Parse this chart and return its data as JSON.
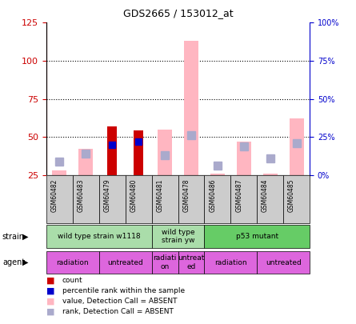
{
  "title": "GDS2665 / 153012_at",
  "samples": [
    "GSM60482",
    "GSM60483",
    "GSM60479",
    "GSM60480",
    "GSM60481",
    "GSM60478",
    "GSM60486",
    "GSM60487",
    "GSM60484",
    "GSM60485"
  ],
  "count_values": [
    null,
    null,
    57,
    54,
    null,
    null,
    null,
    null,
    null,
    null
  ],
  "percentile_rank_values": [
    null,
    null,
    45,
    47,
    null,
    null,
    null,
    null,
    null,
    null
  ],
  "value_absent": [
    28,
    42,
    null,
    null,
    55,
    113,
    26,
    47,
    26,
    62
  ],
  "rank_absent": [
    34,
    39,
    null,
    null,
    38,
    51,
    31,
    44,
    36,
    46
  ],
  "ylim_left": [
    25,
    125
  ],
  "ylim_right": [
    0,
    100
  ],
  "left_ticks": [
    25,
    50,
    75,
    100,
    125
  ],
  "right_ticks": [
    0,
    25,
    50,
    75,
    100
  ],
  "right_tick_labels": [
    "0%",
    "25%",
    "50%",
    "75%",
    "100%"
  ],
  "hlines": [
    50,
    75,
    100
  ],
  "strain_groups": [
    {
      "label": "wild type strain w1118",
      "start": 0,
      "end": 4,
      "color": "#aaddaa"
    },
    {
      "label": "wild type\nstrain yw",
      "start": 4,
      "end": 6,
      "color": "#aaddaa"
    },
    {
      "label": "p53 mutant",
      "start": 6,
      "end": 10,
      "color": "#66cc66"
    }
  ],
  "agent_groups": [
    {
      "label": "radiation",
      "start": 0,
      "end": 2,
      "color": "#dd66dd"
    },
    {
      "label": "untreated",
      "start": 2,
      "end": 4,
      "color": "#dd66dd"
    },
    {
      "label": "radiati\non",
      "start": 4,
      "end": 5,
      "color": "#dd66dd"
    },
    {
      "label": "untreat\ned",
      "start": 5,
      "end": 6,
      "color": "#dd66dd"
    },
    {
      "label": "radiation",
      "start": 6,
      "end": 8,
      "color": "#dd66dd"
    },
    {
      "label": "untreated",
      "start": 8,
      "end": 10,
      "color": "#dd66dd"
    }
  ],
  "count_color": "#CC0000",
  "percentile_color": "#0000CC",
  "value_absent_color": "#FFB6C1",
  "rank_absent_color": "#AAAACC",
  "left_axis_color": "#CC0000",
  "right_axis_color": "#0000CC",
  "cell_color": "#CCCCCC",
  "bg_color": "white"
}
